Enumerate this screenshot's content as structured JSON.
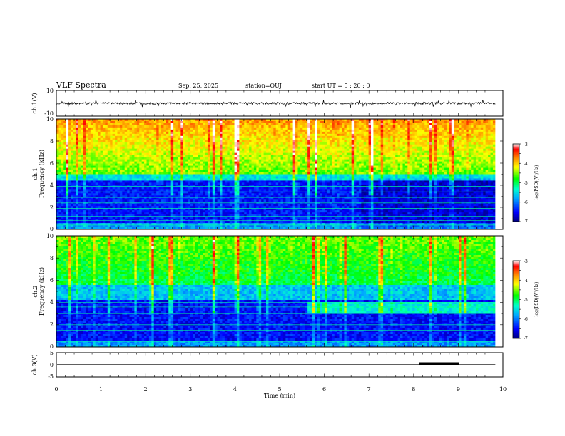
{
  "header": {
    "title": "VLF Spectra",
    "date": "Sep. 25, 2025",
    "station": "station=OUJ",
    "start_ut": "start  UT =   5 : 20 : 0"
  },
  "chart_data": [
    {
      "type": "line",
      "panel": "ch1-waveform",
      "ylabel": "ch.1(V)",
      "ylim": [
        -10,
        10
      ],
      "yticks": [
        "10",
        "-10"
      ],
      "xlim": [
        0,
        10
      ],
      "description_level": "noisy waveform centered near 0 V, amplitude about ±1 V with spikes to about ±3 V",
      "color": "#000000"
    },
    {
      "type": "heatmap",
      "panel": "ch1-spectrogram",
      "ylabel_line1": "ch.1",
      "ylabel_line2": "Frequency (kHz)",
      "ylim": [
        0,
        10
      ],
      "yticks": [
        "0",
        "2",
        "4",
        "6",
        "8",
        "10"
      ],
      "xlim": [
        0,
        9.83
      ],
      "colorbar": {
        "label": "log(PSD)(V²/Hz)",
        "range": [
          -7,
          -3
        ],
        "ticks": [
          "-3",
          "-4",
          "-5",
          "-6",
          "-7"
        ],
        "colors": [
          "#000080",
          "#0000ff",
          "#00aaff",
          "#00ffcc",
          "#00ff00",
          "#ffff00",
          "#ff8800",
          "#ff0000",
          "#ffffff"
        ]
      },
      "regime_change_min": 6.95
    },
    {
      "type": "heatmap",
      "panel": "ch2-spectrogram",
      "ylabel_line1": "ch.2",
      "ylabel_line2": "Frequency (kHz)",
      "ylim": [
        0,
        10
      ],
      "yticks": [
        "0",
        "2",
        "4",
        "6",
        "8",
        "10"
      ],
      "xlim": [
        0,
        9.83
      ],
      "colorbar": {
        "label": "log(PSD)(V²/Hz)",
        "range": [
          -7,
          -3
        ],
        "ticks": [
          "-3",
          "-4",
          "-5",
          "-6",
          "-7"
        ]
      },
      "regime_change_min": 5.7
    },
    {
      "type": "line",
      "panel": "ch3-level",
      "ylabel": "ch.3(V)",
      "ylim": [
        -5,
        5
      ],
      "yticks": [
        "5",
        "0",
        "-5"
      ],
      "xlim": [
        0,
        10
      ],
      "baseline_value": 0,
      "marker_segment": [
        8.12,
        9.02
      ],
      "color": "#000000"
    }
  ],
  "x_axis": {
    "label": "Time (min)",
    "ticks": [
      "0",
      "1",
      "2",
      "3",
      "4",
      "5",
      "6",
      "7",
      "8",
      "9",
      "10"
    ]
  }
}
